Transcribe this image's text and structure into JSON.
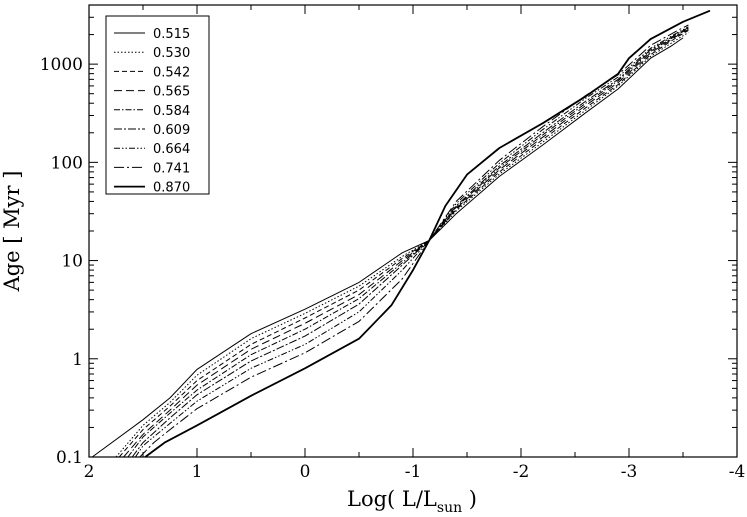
{
  "chart_data": {
    "type": "line",
    "xlabel_main": "Log( L/L",
    "xlabel_sub": "sun",
    "xlabel_close": " )",
    "ylabel": "Age [ Myr ]",
    "xlim": [
      2,
      -4
    ],
    "ylim": [
      0.1,
      4000
    ],
    "yscale": "log",
    "grid": false,
    "legend_position": "top-left",
    "x_ticks": [
      2,
      1,
      0,
      -1,
      -2,
      -3,
      -4
    ],
    "x_tick_labels": [
      "2",
      "1",
      "0",
      "-1",
      "-2",
      "-3",
      "-4"
    ],
    "y_ticks": [
      0.1,
      1,
      10,
      100,
      1000
    ],
    "y_tick_labels": [
      "0.1",
      "1",
      "10",
      "100",
      "1000"
    ],
    "series": [
      {
        "name": "0.515",
        "dash": "",
        "width": 1.0,
        "points": [
          [
            1.97,
            0.1
          ],
          [
            1.5,
            0.24
          ],
          [
            1.25,
            0.4
          ],
          [
            1.0,
            0.78
          ],
          [
            0.5,
            1.8
          ],
          [
            0,
            3.2
          ],
          [
            -0.5,
            6.0
          ],
          [
            -0.9,
            12
          ],
          [
            -1.15,
            16
          ],
          [
            -1.4,
            30
          ],
          [
            -1.8,
            72
          ],
          [
            -2.2,
            150
          ],
          [
            -2.6,
            320
          ],
          [
            -2.9,
            560
          ],
          [
            -3.2,
            1150
          ],
          [
            -3.4,
            1550
          ],
          [
            -3.5,
            1850
          ]
        ]
      },
      {
        "name": "0.530",
        "dash": "1.5,2",
        "width": 1.0,
        "points": [
          [
            1.75,
            0.1
          ],
          [
            1.5,
            0.21
          ],
          [
            1.25,
            0.36
          ],
          [
            1.0,
            0.68
          ],
          [
            0.5,
            1.6
          ],
          [
            0,
            2.9
          ],
          [
            -0.5,
            5.5
          ],
          [
            -0.9,
            11
          ],
          [
            -1.15,
            16
          ],
          [
            -1.4,
            32
          ],
          [
            -1.8,
            76
          ],
          [
            -2.2,
            160
          ],
          [
            -2.6,
            340
          ],
          [
            -2.9,
            600
          ],
          [
            -3.2,
            1200
          ],
          [
            -3.45,
            1800
          ],
          [
            -3.55,
            2100
          ]
        ]
      },
      {
        "name": "0.542",
        "dash": "5,3",
        "width": 1.0,
        "points": [
          [
            1.72,
            0.1
          ],
          [
            1.5,
            0.19
          ],
          [
            1.25,
            0.33
          ],
          [
            1.0,
            0.6
          ],
          [
            0.5,
            1.4
          ],
          [
            0,
            2.6
          ],
          [
            -0.5,
            5.0
          ],
          [
            -0.9,
            10.5
          ],
          [
            -1.15,
            16
          ],
          [
            -1.4,
            33
          ],
          [
            -1.8,
            80
          ],
          [
            -2.2,
            170
          ],
          [
            -2.6,
            360
          ],
          [
            -2.9,
            620
          ],
          [
            -3.2,
            1250
          ],
          [
            -3.45,
            1900
          ],
          [
            -3.55,
            2200
          ]
        ]
      },
      {
        "name": "0.565",
        "dash": "8,4",
        "width": 1.0,
        "points": [
          [
            1.68,
            0.1
          ],
          [
            1.5,
            0.17
          ],
          [
            1.25,
            0.3
          ],
          [
            1.0,
            0.54
          ],
          [
            0.5,
            1.25
          ],
          [
            0,
            2.3
          ],
          [
            -0.5,
            4.5
          ],
          [
            -0.9,
            10
          ],
          [
            -1.15,
            16
          ],
          [
            -1.4,
            34
          ],
          [
            -1.8,
            84
          ],
          [
            -2.2,
            180
          ],
          [
            -2.6,
            380
          ],
          [
            -2.9,
            650
          ],
          [
            -3.2,
            1300
          ],
          [
            -3.45,
            1950
          ],
          [
            -3.55,
            2250
          ]
        ]
      },
      {
        "name": "0.584",
        "dash": "6,2,1.5,2",
        "width": 1.0,
        "points": [
          [
            1.64,
            0.1
          ],
          [
            1.5,
            0.16
          ],
          [
            1.25,
            0.28
          ],
          [
            1.0,
            0.48
          ],
          [
            0.5,
            1.1
          ],
          [
            0,
            2.0
          ],
          [
            -0.5,
            4.1
          ],
          [
            -0.9,
            9.5
          ],
          [
            -1.15,
            16
          ],
          [
            -1.4,
            35
          ],
          [
            -1.8,
            88
          ],
          [
            -2.2,
            190
          ],
          [
            -2.6,
            400
          ],
          [
            -2.9,
            680
          ],
          [
            -3.2,
            1350
          ],
          [
            -3.45,
            2000
          ],
          [
            -3.55,
            2300
          ]
        ]
      },
      {
        "name": "0.609",
        "dash": "8,2,2,2",
        "width": 1.0,
        "points": [
          [
            1.6,
            0.1
          ],
          [
            1.5,
            0.14
          ],
          [
            1.25,
            0.25
          ],
          [
            1.0,
            0.43
          ],
          [
            0.5,
            0.95
          ],
          [
            0,
            1.7
          ],
          [
            -0.5,
            3.6
          ],
          [
            -0.9,
            9
          ],
          [
            -1.15,
            16
          ],
          [
            -1.4,
            36
          ],
          [
            -1.8,
            92
          ],
          [
            -2.2,
            200
          ],
          [
            -2.6,
            420
          ],
          [
            -2.9,
            700
          ],
          [
            -3.2,
            1400
          ],
          [
            -3.45,
            2050
          ],
          [
            -3.55,
            2350
          ]
        ]
      },
      {
        "name": "0.664",
        "dash": "6,2,1.5,2,1.5,2",
        "width": 1.0,
        "points": [
          [
            1.57,
            0.1
          ],
          [
            1.5,
            0.13
          ],
          [
            1.25,
            0.22
          ],
          [
            1.0,
            0.37
          ],
          [
            0.5,
            0.8
          ],
          [
            0,
            1.4
          ],
          [
            -0.5,
            3.0
          ],
          [
            -0.9,
            8
          ],
          [
            -1.15,
            16
          ],
          [
            -1.4,
            38
          ],
          [
            -1.8,
            98
          ],
          [
            -2.2,
            215
          ],
          [
            -2.6,
            450
          ],
          [
            -2.9,
            740
          ],
          [
            -3.2,
            1450
          ],
          [
            -3.45,
            2100
          ],
          [
            -3.55,
            2400
          ]
        ]
      },
      {
        "name": "0.741",
        "dash": "10,3,2,3",
        "width": 1.0,
        "points": [
          [
            1.53,
            0.1
          ],
          [
            1.4,
            0.14
          ],
          [
            1.25,
            0.19
          ],
          [
            1.0,
            0.31
          ],
          [
            0.5,
            0.65
          ],
          [
            0,
            1.15
          ],
          [
            -0.5,
            2.4
          ],
          [
            -0.9,
            6.5
          ],
          [
            -1.15,
            16
          ],
          [
            -1.4,
            40
          ],
          [
            -1.8,
            105
          ],
          [
            -2.2,
            230
          ],
          [
            -2.6,
            480
          ],
          [
            -2.9,
            780
          ],
          [
            -3.2,
            1550
          ],
          [
            -3.45,
            2200
          ],
          [
            -3.55,
            2500
          ]
        ]
      },
      {
        "name": "0.870",
        "dash": "",
        "width": 1.8,
        "points": [
          [
            1.48,
            0.1
          ],
          [
            1.3,
            0.14
          ],
          [
            1.0,
            0.21
          ],
          [
            0.5,
            0.42
          ],
          [
            0,
            0.8
          ],
          [
            -0.5,
            1.6
          ],
          [
            -0.8,
            3.5
          ],
          [
            -1.0,
            8
          ],
          [
            -1.15,
            16
          ],
          [
            -1.3,
            36
          ],
          [
            -1.5,
            75
          ],
          [
            -1.8,
            140
          ],
          [
            -2.2,
            250
          ],
          [
            -2.6,
            470
          ],
          [
            -2.9,
            800
          ],
          [
            -3.0,
            1150
          ],
          [
            -3.2,
            1800
          ],
          [
            -3.5,
            2700
          ],
          [
            -3.75,
            3500
          ]
        ]
      }
    ]
  }
}
